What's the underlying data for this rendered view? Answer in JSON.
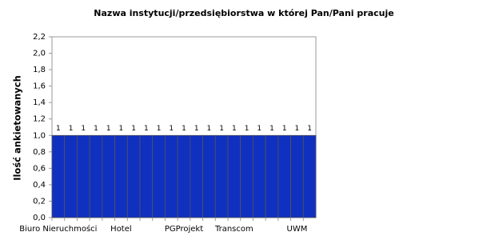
{
  "chart_data": {
    "type": "bar",
    "title": "Nazwa instytucji/przedsiębiorstwa w której Pan/Pani pracuje",
    "y_label": "Ilość ankietowanych",
    "categories": [
      "Biuro Nieruchmości",
      null,
      null,
      null,
      null,
      "Hotel",
      null,
      null,
      null,
      null,
      "PGProjekt",
      null,
      null,
      null,
      "Transcom",
      null,
      null,
      null,
      null,
      "UWM",
      null
    ],
    "values": [
      1,
      1,
      1,
      1,
      1,
      1,
      1,
      1,
      1,
      1,
      1,
      1,
      1,
      1,
      1,
      1,
      1,
      1,
      1,
      1,
      1
    ],
    "color": "#1030c0",
    "ylim": [
      0,
      2.2
    ],
    "yticks": [
      {
        "value": 0,
        "label": "0,0"
      },
      {
        "value": 0.2,
        "label": "0,2"
      },
      {
        "value": 0.4,
        "label": "0,4"
      },
      {
        "value": 0.6,
        "label": "0,6"
      },
      {
        "value": 0.8,
        "label": "0,8"
      },
      {
        "value": 1,
        "label": "1,0"
      },
      {
        "value": 1.2,
        "label": "1,2"
      },
      {
        "value": 1.4,
        "label": "1,4"
      },
      {
        "value": 1.6,
        "label": "1,6"
      },
      {
        "value": 1.8,
        "label": "1,8"
      },
      {
        "value": 2,
        "label": "2,0"
      },
      {
        "value": 2.2,
        "label": "2,2"
      }
    ],
    "grid": false
  }
}
